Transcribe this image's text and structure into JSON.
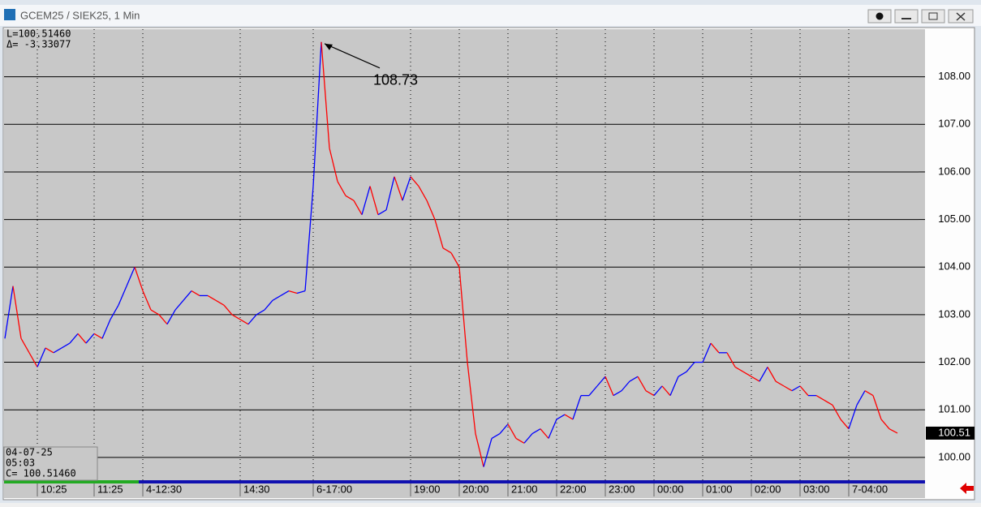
{
  "window": {
    "title": "GCEM25 / SIEK25, 1 Min"
  },
  "info_top": [
    "L=100.51460",
    "Δ=  -3.33077"
  ],
  "info_bottom": [
    "04-07-25",
    "05:03",
    "C=   100.51460"
  ],
  "chart_data": {
    "type": "line",
    "up_color": "#0000ff",
    "down_color": "#ff0000",
    "grid": true,
    "ylim": [
      99.52,
      109.0
    ],
    "yticks": [
      {
        "value": 100,
        "label": "100.00"
      },
      {
        "value": 101,
        "label": "101.00"
      },
      {
        "value": 102,
        "label": "102.00"
      },
      {
        "value": 103,
        "label": "103.00"
      },
      {
        "value": 104,
        "label": "104.00"
      },
      {
        "value": 105,
        "label": "105.00"
      },
      {
        "value": 106,
        "label": "106.00"
      },
      {
        "value": 107,
        "label": "107.00"
      },
      {
        "value": 108,
        "label": "108.00"
      }
    ],
    "last_price": 100.51,
    "annotation": {
      "text": "108.73",
      "index": 39
    },
    "categories": [
      null,
      null,
      null,
      null,
      "10:25",
      null,
      null,
      null,
      null,
      null,
      null,
      "11:25",
      null,
      null,
      null,
      null,
      null,
      "4-12:30",
      null,
      null,
      null,
      null,
      null,
      null,
      null,
      null,
      null,
      null,
      null,
      "14:30",
      null,
      null,
      null,
      null,
      null,
      null,
      null,
      null,
      "6-17:00",
      null,
      null,
      null,
      null,
      null,
      null,
      null,
      null,
      null,
      null,
      null,
      "19:00",
      null,
      null,
      null,
      null,
      null,
      "20:00",
      null,
      null,
      null,
      null,
      null,
      "21:00",
      null,
      null,
      null,
      null,
      null,
      "22:00",
      null,
      null,
      null,
      null,
      null,
      "23:00",
      null,
      null,
      null,
      null,
      null,
      "00:00",
      null,
      null,
      null,
      null,
      null,
      "01:00",
      null,
      null,
      null,
      null,
      null,
      "02:00",
      null,
      null,
      null,
      null,
      null,
      "03:00",
      null,
      null,
      null,
      null,
      null,
      "7-04:00",
      null,
      null,
      null,
      null,
      null,
      null
    ],
    "values": [
      102.5,
      103.6,
      102.5,
      102.2,
      101.9,
      102.3,
      102.2,
      102.3,
      102.4,
      102.6,
      102.4,
      102.6,
      102.5,
      102.9,
      103.2,
      103.6,
      104.0,
      103.5,
      103.1,
      103.0,
      102.8,
      103.1,
      103.3,
      103.5,
      103.4,
      103.4,
      103.3,
      103.2,
      103.0,
      102.9,
      102.8,
      103.0,
      103.1,
      103.3,
      103.4,
      103.5,
      103.45,
      103.5,
      105.7,
      108.73,
      106.5,
      105.8,
      105.5,
      105.4,
      105.1,
      105.7,
      105.1,
      105.2,
      105.9,
      105.4,
      105.9,
      105.7,
      105.4,
      105.0,
      104.4,
      104.3,
      104.0,
      102.0,
      100.5,
      99.8,
      100.4,
      100.5,
      100.7,
      100.4,
      100.3,
      100.5,
      100.6,
      100.4,
      100.8,
      100.9,
      100.8,
      101.3,
      101.3,
      101.5,
      101.7,
      101.3,
      101.4,
      101.6,
      101.7,
      101.4,
      101.3,
      101.5,
      101.3,
      101.7,
      101.8,
      102.0,
      102.0,
      102.4,
      102.2,
      102.2,
      101.9,
      101.8,
      101.7,
      101.6,
      101.9,
      101.6,
      101.5,
      101.4,
      101.5,
      101.3,
      101.3,
      101.2,
      101.1,
      100.8,
      100.6,
      101.1,
      101.4,
      101.3,
      100.8,
      100.6,
      100.51
    ]
  }
}
